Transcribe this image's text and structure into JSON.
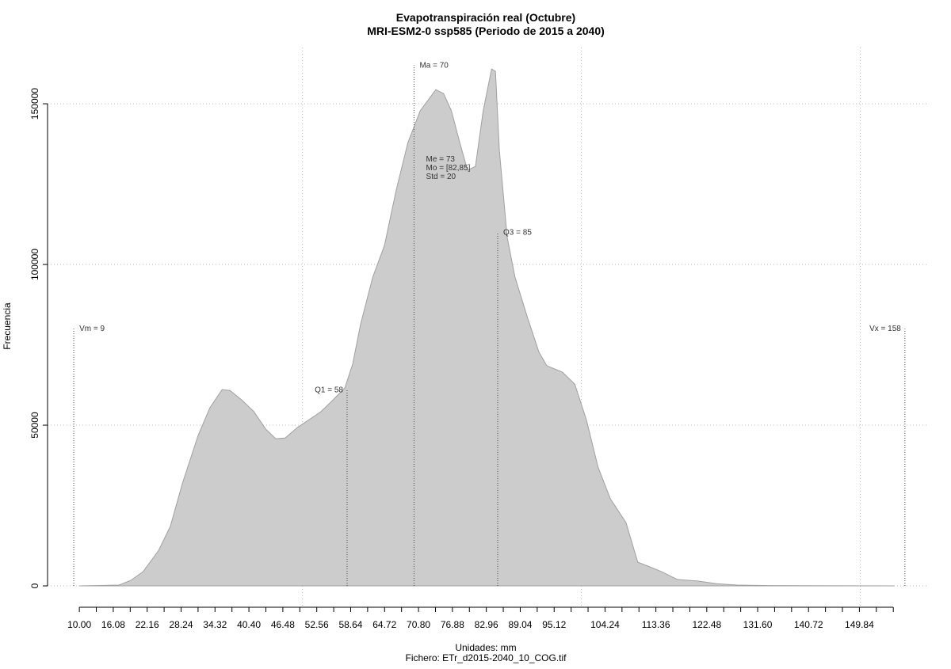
{
  "chart_data": {
    "type": "area",
    "title": "Evapotranspiración real (Octubre)",
    "subtitle": "MRI-ESM2-0 ssp585 (Periodo de 2015 a 2040)",
    "x_label": "Unidades: mm",
    "caption": "Fichero: ETr_d2015-2040_10_COG.tif",
    "y_label": "Frecuencia",
    "color": "#cccccc",
    "line_color": "#a0a0a0",
    "x": [
      10,
      17.1,
      19.2,
      21.4,
      24.2,
      26.3,
      28.5,
      31.3,
      33.4,
      35.6,
      37,
      39.1,
      41.3,
      43.4,
      45.2,
      46.9,
      49.1,
      51.2,
      53.3,
      55.5,
      57.6,
      59,
      60.4,
      62.6,
      64.7,
      66.8,
      68.9,
      71.1,
      73.9,
      75.3,
      76.7,
      78.2,
      79.6,
      81,
      82.4,
      83.9,
      84.6,
      85.3,
      86.7,
      88.1,
      90.3,
      92.4,
      93.8,
      96.6,
      98.8,
      100.9,
      103,
      105.2,
      108,
      110.1,
      112.3,
      114.4,
      117.2,
      120.8,
      124.3,
      127.9,
      133.6,
      156
    ],
    "values": [
      0,
      250,
      1700,
      4400,
      11000,
      18500,
      32000,
      46800,
      55400,
      61100,
      60800,
      57900,
      54200,
      48800,
      45800,
      46000,
      49300,
      51700,
      54200,
      57900,
      61600,
      69000,
      81300,
      96100,
      105900,
      123100,
      137900,
      147800,
      154400,
      153200,
      147800,
      137900,
      129300,
      130500,
      147800,
      160800,
      160100,
      135500,
      108400,
      96100,
      83700,
      72700,
      68500,
      66500,
      62800,
      51700,
      36900,
      27100,
      19700,
      7400,
      5900,
      4400,
      2000,
      1500,
      700,
      250,
      100,
      0
    ],
    "xlim": [
      4.3,
      162
    ],
    "ylim": [
      -6150,
      167500
    ],
    "yticks": [
      0,
      50000,
      100000,
      150000
    ],
    "xticks": [
      {
        "value": 10,
        "label": "10.00"
      },
      {
        "value": 16.08,
        "label": "16.08"
      },
      {
        "value": 22.16,
        "label": "22.16"
      },
      {
        "value": 28.24,
        "label": "28.24"
      },
      {
        "value": 34.32,
        "label": "34.32"
      },
      {
        "value": 40.4,
        "label": "40.40"
      },
      {
        "value": 46.48,
        "label": "46.48"
      },
      {
        "value": 52.56,
        "label": "52.56"
      },
      {
        "value": 58.64,
        "label": "58.64"
      },
      {
        "value": 64.72,
        "label": "64.72"
      },
      {
        "value": 70.8,
        "label": "70.80"
      },
      {
        "value": 76.88,
        "label": "76.88"
      },
      {
        "value": 82.96,
        "label": "82.96"
      },
      {
        "value": 89.04,
        "label": "89.04"
      },
      {
        "value": 95.12,
        "label": "95.12"
      },
      {
        "value": 104.24,
        "label": "104.24"
      },
      {
        "value": 113.36,
        "label": "113.36"
      },
      {
        "value": 122.48,
        "label": "122.48"
      },
      {
        "value": 131.6,
        "label": "131.60"
      },
      {
        "value": 140.72,
        "label": "140.72"
      },
      {
        "value": 149.84,
        "label": "149.84"
      }
    ],
    "xminor_ticks": [
      13.04,
      19.12,
      25.2,
      31.28,
      37.36,
      43.44,
      49.52,
      55.6,
      61.68,
      67.76,
      73.84,
      79.92,
      86,
      92.08,
      98.16,
      101.2,
      107.28,
      110.32,
      116.4,
      119.44,
      125.52,
      128.56,
      134.64,
      137.68,
      143.76,
      146.8,
      152.88,
      155.92
    ],
    "xgrid": [
      50,
      100,
      150
    ],
    "grid": true,
    "markers": [
      {
        "label": "Vm = 9",
        "x": 9,
        "top": 80000,
        "side": "right"
      },
      {
        "label": "Q1 = 58",
        "x": 58,
        "top": 61000,
        "side": "left"
      },
      {
        "label": "Ma = 70",
        "x": 70,
        "top": 162000,
        "side": "right"
      },
      {
        "label": "Q3 = 85",
        "x": 85,
        "top": 110000,
        "side": "right"
      },
      {
        "label": "Vx = 158",
        "x": 158,
        "top": 80000,
        "side": "left"
      }
    ],
    "stats_text": [
      "Me = 73",
      "Mo = [82,85]",
      "Std = 20"
    ],
    "stats_position": {
      "x": 73,
      "y": 132000
    }
  }
}
